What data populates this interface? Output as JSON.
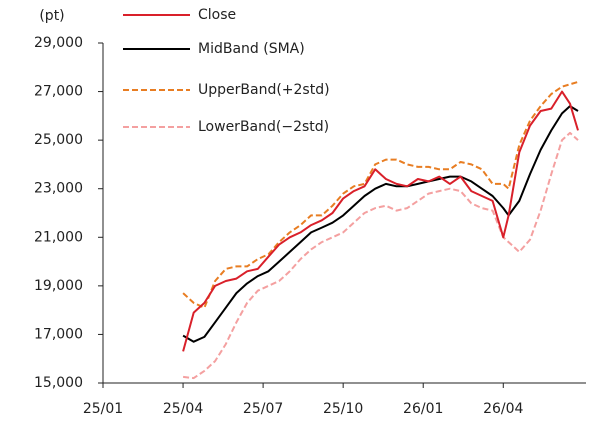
{
  "chart_data": {
    "type": "line",
    "y_label": "(pt)",
    "x": [
      3.0,
      3.4,
      3.8,
      4.2,
      4.6,
      5.0,
      5.4,
      5.8,
      6.2,
      6.6,
      7.0,
      7.4,
      7.8,
      8.2,
      8.6,
      9.0,
      9.4,
      9.8,
      10.2,
      10.6,
      11.0,
      11.4,
      11.8,
      12.2,
      12.6,
      13.0,
      13.4,
      13.8,
      14.2,
      14.6,
      15.0,
      15.2,
      15.6,
      16.0,
      16.4,
      16.8,
      17.2,
      17.5,
      17.8
    ],
    "series": [
      {
        "name": "Close",
        "color": "#d9202a",
        "dash": false,
        "values": [
          16300,
          17900,
          18300,
          19000,
          19200,
          19300,
          19600,
          19700,
          20200,
          20700,
          21000,
          21200,
          21500,
          21700,
          22000,
          22600,
          22900,
          23100,
          23800,
          23400,
          23200,
          23100,
          23400,
          23300,
          23500,
          23200,
          23500,
          22900,
          22700,
          22500,
          21000,
          21900,
          24500,
          25600,
          26200,
          26300,
          27000,
          26500,
          25400
        ]
      },
      {
        "name": "MidBand (SMA)",
        "color": "#000000",
        "dash": false,
        "values": [
          16950,
          16700,
          16900,
          17500,
          18100,
          18700,
          19100,
          19400,
          19600,
          20000,
          20400,
          20800,
          21200,
          21400,
          21600,
          21900,
          22300,
          22700,
          23000,
          23200,
          23100,
          23100,
          23200,
          23300,
          23400,
          23500,
          23500,
          23300,
          23000,
          22700,
          22200,
          21900,
          22500,
          23600,
          24600,
          25400,
          26100,
          26400,
          26200
        ]
      },
      {
        "name": "UpperBand(+2std)",
        "color": "#e87d22",
        "dash": true,
        "values": [
          18700,
          18300,
          18100,
          19200,
          19700,
          19800,
          19800,
          20100,
          20300,
          20800,
          21200,
          21500,
          21900,
          21900,
          22300,
          22800,
          23100,
          23200,
          24000,
          24200,
          24200,
          24000,
          23900,
          23900,
          23800,
          23800,
          24100,
          24000,
          23800,
          23200,
          23200,
          23000,
          24800,
          25800,
          26400,
          26900,
          27200,
          27300,
          27400
        ]
      },
      {
        "name": "LowerBand(−2std)",
        "color": "#f4a0a0",
        "dash": true,
        "values": [
          15250,
          15200,
          15500,
          15900,
          16600,
          17500,
          18300,
          18800,
          19000,
          19200,
          19600,
          20100,
          20500,
          20800,
          21000,
          21200,
          21600,
          22000,
          22200,
          22300,
          22100,
          22200,
          22500,
          22800,
          22900,
          23000,
          22900,
          22400,
          22200,
          22100,
          21000,
          20800,
          20400,
          20900,
          22100,
          23600,
          25000,
          25300,
          25000
        ]
      }
    ],
    "xlim": [
      0,
      18.1
    ],
    "xticks": [
      {
        "value": 0,
        "label": "25/01"
      },
      {
        "value": 3,
        "label": "25/04"
      },
      {
        "value": 6,
        "label": "25/07"
      },
      {
        "value": 9,
        "label": "25/10"
      },
      {
        "value": 12,
        "label": "26/01"
      },
      {
        "value": 15,
        "label": "26/04"
      }
    ],
    "ylim": [
      15000,
      29000
    ],
    "yticks": [
      {
        "value": 15000,
        "label": "15,000"
      },
      {
        "value": 17000,
        "label": "17,000"
      },
      {
        "value": 19000,
        "label": "19,000"
      },
      {
        "value": 21000,
        "label": "21,000"
      },
      {
        "value": 23000,
        "label": "23,000"
      },
      {
        "value": 25000,
        "label": "25,000"
      },
      {
        "value": 27000,
        "label": "27,000"
      },
      {
        "value": 29000,
        "label": "29,000"
      }
    ],
    "legend": "upper left"
  }
}
